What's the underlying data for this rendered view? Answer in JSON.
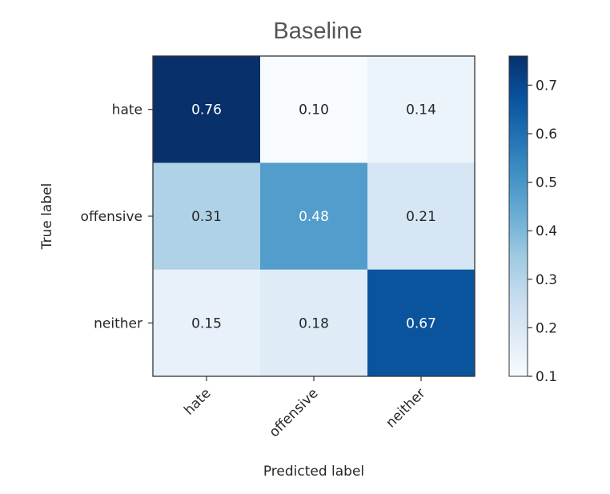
{
  "chart_data": {
    "type": "heatmap",
    "title": "Baseline",
    "xlabel": "Predicted label",
    "ylabel": "True label",
    "x_categories": [
      "hate",
      "offensive",
      "neither"
    ],
    "y_categories": [
      "hate",
      "offensive",
      "neither"
    ],
    "values": [
      [
        0.76,
        0.1,
        0.14
      ],
      [
        0.31,
        0.48,
        0.21
      ],
      [
        0.15,
        0.18,
        0.67
      ]
    ],
    "value_labels": [
      [
        "0.76",
        "0.10",
        "0.14"
      ],
      [
        "0.31",
        "0.48",
        "0.21"
      ],
      [
        "0.15",
        "0.18",
        "0.67"
      ]
    ],
    "colorscale": "Blues",
    "color_range": [
      0.1,
      0.76
    ],
    "colorbar_ticks": [
      0.1,
      0.2,
      0.3,
      0.4,
      0.5,
      0.6,
      0.7
    ],
    "colorbar_tick_labels": [
      "0.1",
      "0.2",
      "0.3",
      "0.4",
      "0.5",
      "0.6",
      "0.7"
    ],
    "text_color_light": "#ffffff",
    "text_color_dark": "#262626"
  }
}
